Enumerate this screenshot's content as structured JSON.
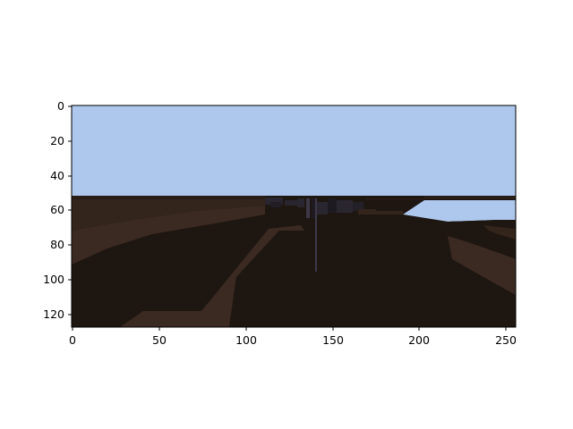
{
  "figure": {
    "image_size": [
      256,
      128
    ],
    "x_ticks": [
      "0",
      "50",
      "100",
      "150",
      "200",
      "250"
    ],
    "y_ticks": [
      "0",
      "20",
      "40",
      "60",
      "80",
      "100",
      "120"
    ]
  },
  "scene": {
    "sky_color": "#aec8ed",
    "ground_color": "#1e1611",
    "horizon_line_color": "#281c16",
    "road_edge_color": "#3b2a22",
    "building_color": "#2a2630"
  }
}
